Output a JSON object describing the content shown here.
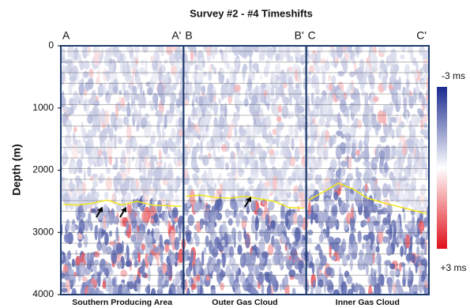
{
  "chart_data": {
    "type": "seismic",
    "title": "Survey #2 - #4 Timeshifts",
    "y_label": "Depth (m)",
    "ylim": [
      0,
      4000
    ],
    "yticks": [
      0,
      1000,
      2000,
      3000,
      4000
    ],
    "panels": [
      {
        "left_label": "A",
        "right_label": "A'",
        "name": "Southern Producing Area",
        "horizon": [
          2550,
          2560,
          2530,
          2480,
          2560,
          2500,
          2560,
          2570,
          2580
        ]
      },
      {
        "left_label": "B",
        "right_label": "B'",
        "name": "Outer Gas Cloud",
        "horizon": [
          2420,
          2400,
          2440,
          2450,
          2420,
          2460,
          2500,
          2600,
          2610
        ]
      },
      {
        "left_label": "C",
        "right_label": "C'",
        "name": "Inner Gas Cloud",
        "horizon": [
          2480,
          2350,
          2210,
          2300,
          2450,
          2520,
          2580,
          2640,
          2700
        ]
      }
    ],
    "colorbar": {
      "lim": [
        -3,
        3
      ],
      "ticks": [
        {
          "value": -3,
          "label": "-3 ms"
        },
        {
          "value": 3,
          "label": "+3 ms"
        }
      ],
      "colors": [
        "#1a2a8f",
        "#ffffff",
        "#e0101a"
      ]
    }
  }
}
